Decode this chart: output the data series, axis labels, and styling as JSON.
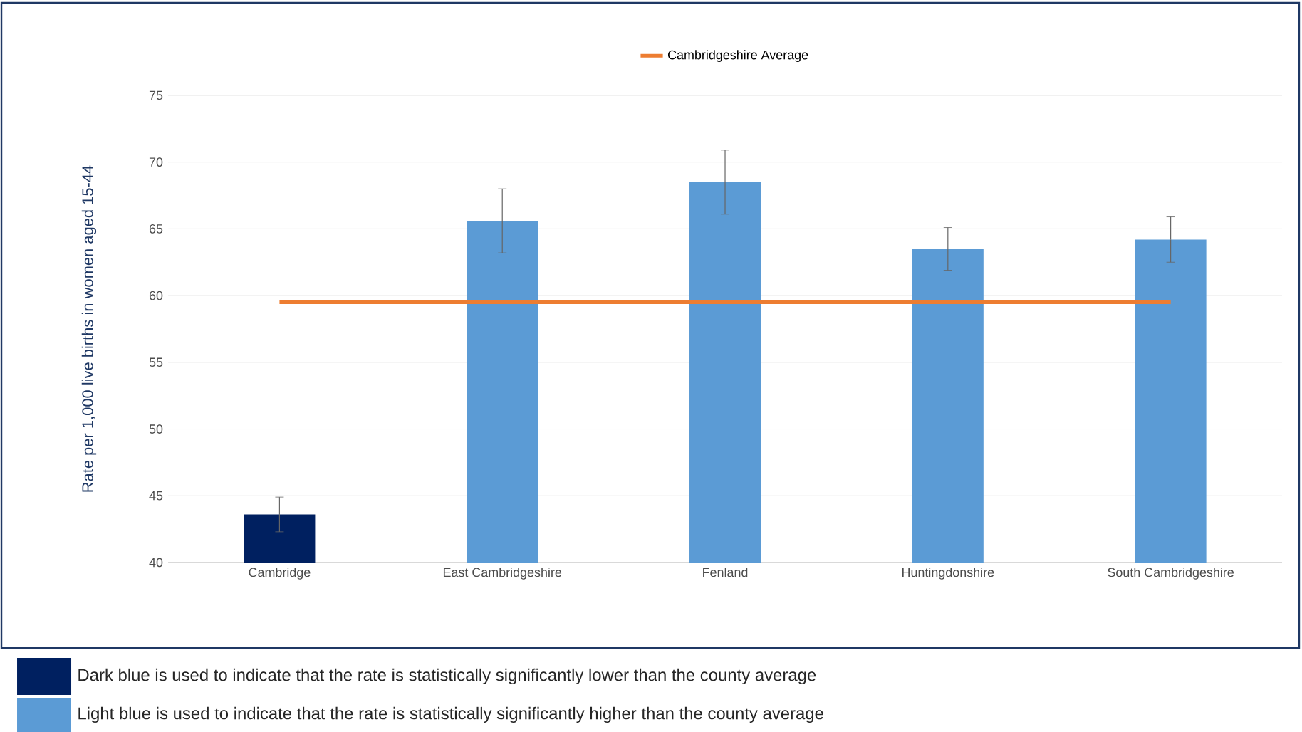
{
  "chart_data": {
    "type": "bar",
    "ylabel": "Rate per 1,000 live births in women aged 15-44",
    "categories": [
      "Cambridge",
      "East Cambridgeshire",
      "Fenland",
      "Huntingdonshire",
      "South Cambridgeshire"
    ],
    "values": [
      43.6,
      65.6,
      68.5,
      63.5,
      64.2
    ],
    "colors": [
      "#002060",
      "#5b9bd5",
      "#5b9bd5",
      "#5b9bd5",
      "#5b9bd5"
    ],
    "errors": [
      [
        42.3,
        44.9
      ],
      [
        63.2,
        68.0
      ],
      [
        66.1,
        70.9
      ],
      [
        61.9,
        65.1
      ],
      [
        62.5,
        65.9
      ]
    ],
    "ylim": [
      40,
      75
    ],
    "yticks": [
      40,
      45,
      50,
      55,
      60,
      65,
      70,
      75
    ],
    "grid": "y",
    "legend": "top",
    "ref_lines": [
      {
        "axis": "y",
        "value": 59.5,
        "label": "Cambridgeshire Average",
        "color": "#ed7d31"
      }
    ],
    "annotations": [
      "Dark blue is used to indicate that the rate is statistically significantly lower than the county average",
      "Light blue is used to indicate that the rate is statistically significantly higher than the county average"
    ]
  }
}
